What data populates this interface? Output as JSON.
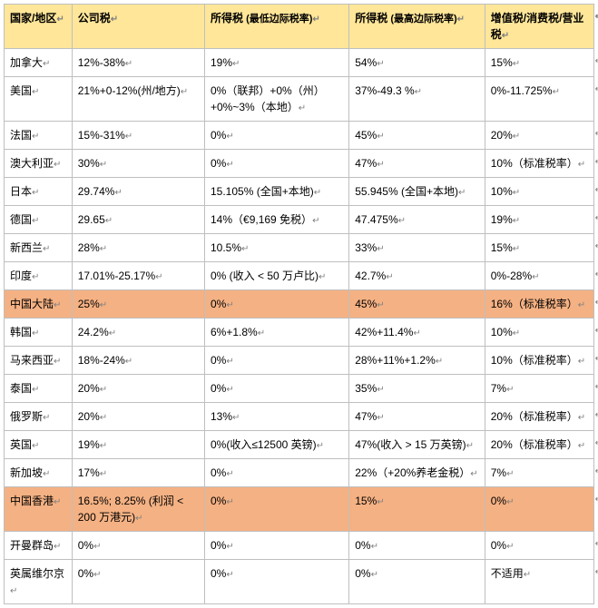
{
  "colors": {
    "header_bg": "#ffe699",
    "highlight_bg": "#f4b183",
    "border": "#bfbfbf",
    "para_mark": "#808080"
  },
  "para_mark": "↵",
  "outside_mark": "↵",
  "columns": [
    {
      "key": "region",
      "label": "国家/地区"
    },
    {
      "key": "corp",
      "label": "公司税"
    },
    {
      "key": "income_low",
      "label": "所得税",
      "sub": "(最低边际税率)"
    },
    {
      "key": "income_high",
      "label": "所得税",
      "sub": "(最高边际税率)"
    },
    {
      "key": "vat",
      "label": "增值税/消费税/营业税"
    }
  ],
  "rows": [
    {
      "region": "加拿大",
      "corp": "12%-38%",
      "income_low": "19%",
      "income_high": "54%",
      "vat": "15%",
      "highlight": false,
      "multiline": false
    },
    {
      "region": "美国",
      "corp": "21%+0-12%(州/地方)",
      "income_low": "0%（联邦）+0%（州）+0%~3%（本地）",
      "income_high": "37%-49.3 %",
      "vat": "0%-11.725%",
      "highlight": false,
      "multiline": true
    },
    {
      "region": "法国",
      "corp": "15%-31%",
      "income_low": "0%",
      "income_high": "45%",
      "vat": "20%",
      "highlight": false,
      "multiline": false
    },
    {
      "region": "澳大利亚",
      "corp": "30%",
      "income_low": "0%",
      "income_high": "47%",
      "vat": "10%（标准税率）",
      "highlight": false,
      "multiline": false
    },
    {
      "region": "日本",
      "corp": "29.74%",
      "income_low": "15.105% (全国+本地)",
      "income_high": "55.945% (全国+本地)",
      "vat": "10%",
      "highlight": false,
      "multiline": false
    },
    {
      "region": "德国",
      "corp": "29.65",
      "income_low": "14%（€9,169 免税）",
      "income_high": "47.475%",
      "vat": "19%",
      "highlight": false,
      "multiline": false
    },
    {
      "region": "新西兰",
      "corp": "28%",
      "income_low": "10.5%",
      "income_high": "33%",
      "vat": "15%",
      "highlight": false,
      "multiline": false
    },
    {
      "region": "印度",
      "corp": "17.01%-25.17%",
      "income_low": "0% (收入 < 50 万卢比)",
      "income_high": "42.7%",
      "vat": "0%-28%",
      "highlight": false,
      "multiline": false
    },
    {
      "region": "中国大陆",
      "corp": "25%",
      "income_low": "0%",
      "income_high": "45%",
      "vat": "16%（标准税率）",
      "highlight": true,
      "multiline": false
    },
    {
      "region": "韩国",
      "corp": "24.2%",
      "income_low": "6%+1.8%",
      "income_high": "42%+11.4%",
      "vat": "10%",
      "highlight": false,
      "multiline": false
    },
    {
      "region": "马来西亚",
      "corp": "18%-24%",
      "income_low": "0%",
      "income_high": "28%+11%+1.2%",
      "vat": "10%（标准税率）",
      "highlight": false,
      "multiline": false
    },
    {
      "region": "泰国",
      "corp": "20%",
      "income_low": "0%",
      "income_high": "35%",
      "vat": "7%",
      "highlight": false,
      "multiline": false
    },
    {
      "region": "俄罗斯",
      "corp": "20%",
      "income_low": "13%",
      "income_high": "47%",
      "vat": "20%（标准税率）",
      "highlight": false,
      "multiline": false
    },
    {
      "region": "英国",
      "corp": "19%",
      "income_low": "0%(收入≤12500 英镑)",
      "income_high": "47%(收入 > 15 万英镑)",
      "vat": "20%（标准税率）",
      "highlight": false,
      "multiline": false
    },
    {
      "region": "新加坡",
      "corp": "17%",
      "income_low": "0%",
      "income_high": "22%（+20%养老金税）",
      "vat": "7%",
      "highlight": false,
      "multiline": false
    },
    {
      "region": "中国香港",
      "corp": "16.5%; 8.25% (利润 < 200 万港元)",
      "income_low": "0%",
      "income_high": "15%",
      "vat": "0%",
      "highlight": true,
      "multiline": true
    },
    {
      "region": "开曼群岛",
      "corp": "0%",
      "income_low": "0%",
      "income_high": "0%",
      "vat": "0%",
      "highlight": false,
      "multiline": false
    },
    {
      "region": "英属维尔京",
      "corp": "0%",
      "income_low": "0%",
      "income_high": "0%",
      "vat": "不适用",
      "highlight": false,
      "multiline": false
    }
  ]
}
